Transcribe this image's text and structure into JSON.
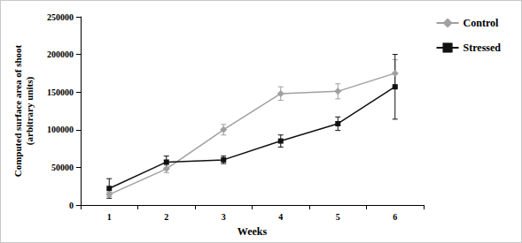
{
  "chart_data": {
    "type": "line",
    "x_label": "Weeks",
    "y_label": "Computed surface area of shoot\n(arbitrary units)",
    "categories": [
      "1",
      "2",
      "3",
      "4",
      "5",
      "6"
    ],
    "series": [
      {
        "name": "Control",
        "color": "#a0a0a0",
        "marker": "diamond",
        "values": [
          14000,
          48000,
          100000,
          148000,
          151000,
          175000
        ],
        "errors": [
          3000,
          5000,
          7000,
          9000,
          10000,
          18000
        ]
      },
      {
        "name": "Stressed",
        "color": "#111111",
        "marker": "square",
        "values": [
          22000,
          57000,
          60000,
          85000,
          108000,
          157000
        ],
        "errors": [
          13000,
          8000,
          5000,
          8000,
          9000,
          43000
        ]
      }
    ],
    "ylim": [
      0,
      250000
    ],
    "yticks": [
      0,
      50000,
      100000,
      150000,
      200000,
      250000
    ],
    "grid": false,
    "legend": "top-right"
  }
}
